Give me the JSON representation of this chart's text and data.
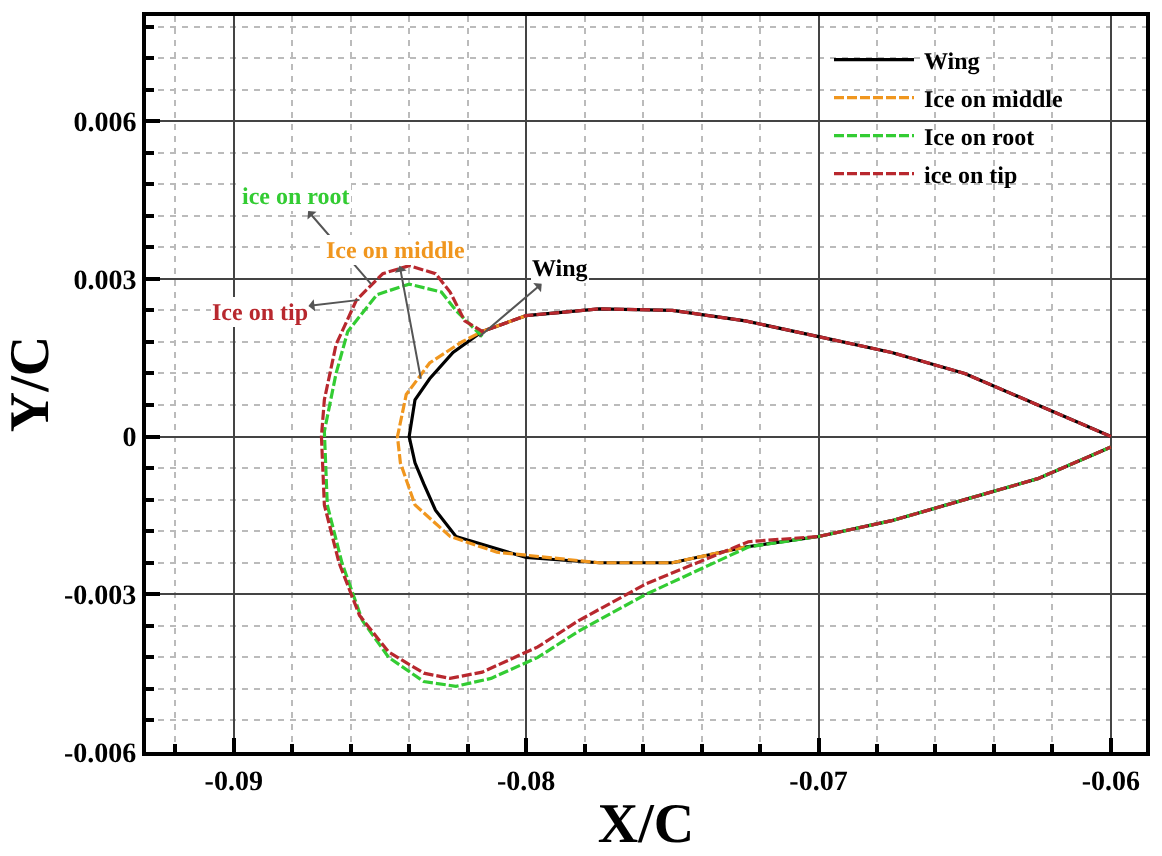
{
  "chart_data": {
    "type": "line",
    "xlabel": "X/C",
    "ylabel": "Y/C",
    "xlim": [
      -0.093,
      -0.0588
    ],
    "ylim": [
      -0.006,
      0.008
    ],
    "xticks": [
      {
        "value": -0.09,
        "label": "-0.09"
      },
      {
        "value": -0.08,
        "label": "-0.08"
      },
      {
        "value": -0.07,
        "label": "-0.07"
      },
      {
        "value": -0.06,
        "label": "-0.06"
      },
      {
        "value": -0.092,
        "label": null
      },
      {
        "value": -0.088,
        "label": null
      },
      {
        "value": -0.086,
        "label": null
      },
      {
        "value": -0.084,
        "label": null
      },
      {
        "value": -0.082,
        "label": null
      },
      {
        "value": -0.078,
        "label": null
      },
      {
        "value": -0.076,
        "label": null
      },
      {
        "value": -0.074,
        "label": null
      },
      {
        "value": -0.072,
        "label": null
      },
      {
        "value": -0.068,
        "label": null
      },
      {
        "value": -0.066,
        "label": null
      },
      {
        "value": -0.064,
        "label": null
      },
      {
        "value": -0.062,
        "label": null
      }
    ],
    "yticks": [
      {
        "value": -0.006,
        "label": "-0.006"
      },
      {
        "value": -0.003,
        "label": "-0.003"
      },
      0,
      {
        "value": 0.003,
        "label": "0.003"
      },
      {
        "value": 0.006,
        "label": "0.006"
      },
      {
        "value": -0.0054,
        "label": null
      },
      {
        "value": -0.0048,
        "label": null
      },
      {
        "value": -0.0042,
        "label": null
      },
      {
        "value": -0.0036,
        "label": null
      },
      {
        "value": -0.0024,
        "label": null
      },
      {
        "value": -0.0018,
        "label": null
      },
      {
        "value": -0.0012,
        "label": null
      },
      {
        "value": -0.0006,
        "label": null
      },
      {
        "value": 0.0006,
        "label": null
      },
      {
        "value": 0.0012,
        "label": null
      },
      {
        "value": 0.0018,
        "label": null
      },
      {
        "value": 0.0024,
        "label": null
      },
      {
        "value": 0.0036,
        "label": null
      },
      {
        "value": 0.0042,
        "label": null
      },
      {
        "value": 0.0048,
        "label": null
      },
      {
        "value": 0.0054,
        "label": null
      },
      {
        "value": 0.0066,
        "label": null
      },
      {
        "value": 0.0072,
        "label": null
      },
      {
        "value": 0.0078,
        "label": null
      }
    ],
    "grid": true,
    "legend": "top right",
    "marker": "none",
    "series": [
      {
        "name": "Wing",
        "color": "#000000",
        "line_style": "solid",
        "x": [
          -0.06,
          -0.0625,
          -0.065,
          -0.0675,
          -0.07,
          -0.0725,
          -0.075,
          -0.0775,
          -0.08,
          -0.0815,
          -0.0825,
          -0.0833,
          -0.0838,
          -0.084,
          -0.0838,
          -0.0835,
          -0.0831,
          -0.0824,
          -0.08,
          -0.0775,
          -0.075,
          -0.0725,
          -0.07,
          -0.0675,
          -0.065,
          -0.0625,
          -0.06
        ],
        "values": [
          0,
          0.0006,
          0.0012,
          0.0016,
          0.0019,
          0.0022,
          0.0024,
          0.00243,
          0.0023,
          0.002,
          0.0016,
          0.0011,
          0.0007,
          0,
          -0.0005,
          -0.0009,
          -0.0014,
          -0.0019,
          -0.0023,
          -0.0024,
          -0.0024,
          -0.0021,
          -0.0019,
          -0.0016,
          -0.0012,
          -0.0008,
          -0.0002
        ]
      },
      {
        "name": "Ice on middle",
        "color": "#f0961e",
        "line_style": "dashed",
        "x": [
          -0.08,
          -0.0815,
          -0.0822,
          -0.0833,
          -0.0841,
          -0.0844,
          -0.0843,
          -0.0838,
          -0.0826,
          -0.081,
          -0.0775,
          -0.075,
          -0.0725
        ],
        "values": [
          0.0023,
          0.002,
          0.0018,
          0.0014,
          0.0008,
          0,
          -0.0005,
          -0.0013,
          -0.0019,
          -0.0022,
          -0.0024,
          -0.0024,
          -0.0021
        ]
      },
      {
        "name": "Ice on root",
        "color": "#33cc33",
        "line_style": "dashed",
        "x": [
          -0.0815,
          -0.0824,
          -0.0829,
          -0.084,
          -0.0851,
          -0.0861,
          -0.0865,
          -0.0869,
          -0.0868,
          -0.0863,
          -0.0856,
          -0.0847,
          -0.0835,
          -0.0824,
          -0.0812,
          -0.0796,
          -0.0782,
          -0.0759,
          -0.0724,
          -0.07,
          -0.0675,
          -0.065,
          -0.0625,
          -0.06
        ],
        "values": [
          0.0019,
          0.0024,
          0.00275,
          0.0029,
          0.0027,
          0.002,
          0.0012,
          0.0001,
          -0.0013,
          -0.0024,
          -0.0035,
          -0.0042,
          -0.00466,
          -0.00475,
          -0.0046,
          -0.0042,
          -0.0037,
          -0.003,
          -0.0021,
          -0.0019,
          -0.0016,
          -0.0012,
          -0.0008,
          -0.0002
        ]
      },
      {
        "name": "ice on tip",
        "color": "#b8282e",
        "line_style": "dashed",
        "x": [
          -0.06,
          -0.0625,
          -0.065,
          -0.0675,
          -0.07,
          -0.0725,
          -0.075,
          -0.0775,
          -0.08,
          -0.0815,
          -0.0821,
          -0.0826,
          -0.0831,
          -0.084,
          -0.0849,
          -0.0858,
          -0.0865,
          -0.0869,
          -0.087,
          -0.0869,
          -0.0864,
          -0.0857,
          -0.0847,
          -0.0835,
          -0.0826,
          -0.0815,
          -0.0796,
          -0.0782,
          -0.0759,
          -0.0724,
          -0.07,
          -0.0675,
          -0.065,
          -0.0625,
          -0.06
        ],
        "values": [
          0,
          0.0006,
          0.0012,
          0.0016,
          0.0019,
          0.0022,
          0.0024,
          0.00243,
          0.0023,
          0.002,
          0.0022,
          0.00275,
          0.0031,
          0.00325,
          0.0031,
          0.0026,
          0.00175,
          0.0007,
          0,
          -0.0013,
          -0.0024,
          -0.0034,
          -0.0041,
          -0.0045,
          -0.0046,
          -0.00448,
          -0.004,
          -0.0035,
          -0.0028,
          -0.002,
          -0.0019,
          -0.0016,
          -0.0012,
          -0.0008,
          -0.0002
        ]
      }
    ],
    "annotations": [
      {
        "text": "Ice on tip",
        "x": -0.0857,
        "y": 0.0026
      },
      {
        "text": "ice on root",
        "x": -0.0853,
        "y": 0.0029
      },
      {
        "text": "Ice on middle",
        "x": -0.0836,
        "y": 0.0011
      },
      {
        "text": "Wing",
        "x": -0.0816,
        "y": 0.0019
      }
    ]
  }
}
